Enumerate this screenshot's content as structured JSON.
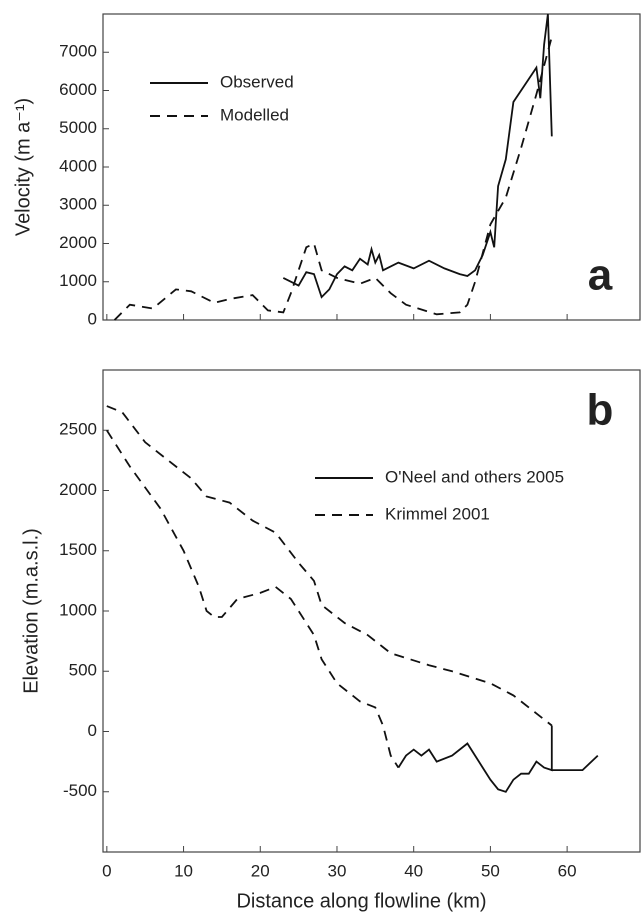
{
  "chart_data": [
    {
      "type": "line",
      "annotation": "a",
      "ylabel": "Velocity (m a⁻¹)",
      "xlim": [
        -0.5,
        69.5
      ],
      "xticks": [
        0,
        10,
        20,
        30,
        40,
        50,
        60
      ],
      "ylim": [
        0,
        8000
      ],
      "yticks": [
        0,
        1000,
        2000,
        3000,
        4000,
        5000,
        6000,
        7000
      ],
      "series": [
        {
          "name": "Observed",
          "color": "#111111",
          "dash": false,
          "x": [
            23,
            25,
            26,
            27,
            28,
            29,
            30,
            31,
            32,
            33,
            34,
            34.5,
            35,
            35.5,
            36,
            37,
            38,
            40,
            42,
            44,
            46,
            47,
            48,
            49,
            50,
            50.5,
            51,
            52,
            53,
            54,
            55,
            56,
            56.5,
            57,
            57.5,
            58
          ],
          "values": [
            1100,
            900,
            1250,
            1200,
            600,
            800,
            1200,
            1400,
            1300,
            1600,
            1450,
            1850,
            1500,
            1700,
            1300,
            1400,
            1500,
            1350,
            1550,
            1350,
            1200,
            1150,
            1300,
            1700,
            2300,
            1900,
            3500,
            4200,
            5700,
            6000,
            6300,
            6600,
            5800,
            7200,
            8000,
            4800
          ]
        },
        {
          "name": "Modelled",
          "color": "#111111",
          "dash": true,
          "x": [
            1,
            3,
            6,
            9,
            11,
            14,
            16,
            19,
            21,
            23,
            24,
            26,
            27,
            28,
            30,
            33,
            35,
            37,
            39,
            43,
            46,
            47,
            48,
            50,
            52,
            54,
            56,
            58
          ],
          "values": [
            0,
            400,
            300,
            800,
            750,
            450,
            550,
            650,
            250,
            200,
            700,
            1900,
            2000,
            1300,
            1100,
            950,
            1100,
            700,
            400,
            150,
            200,
            400,
            1000,
            2500,
            3200,
            4500,
            5900,
            7400
          ]
        }
      ]
    },
    {
      "type": "line",
      "annotation": "b",
      "ylabel": "Elevation (m.a.s.l.)",
      "xlabel": "Distance along flowline (km)",
      "xlim": [
        -0.5,
        69.5
      ],
      "xticks": [
        0,
        10,
        20,
        30,
        40,
        50,
        60
      ],
      "ylim": [
        -1000,
        3000
      ],
      "yticks": [
        -500,
        0,
        500,
        1000,
        1500,
        2000,
        2500
      ],
      "series": [
        {
          "name": "O'Neel and others 2005",
          "color": "#111111",
          "dash": false,
          "x": [
            38,
            39,
            40,
            41,
            42,
            43,
            45,
            47,
            48,
            49,
            50,
            51,
            52,
            53,
            54,
            55,
            56,
            57,
            58,
            58,
            58,
            60,
            62,
            64
          ],
          "values": [
            -300,
            -200,
            -150,
            -200,
            -150,
            -250,
            -200,
            -100,
            -200,
            -300,
            -400,
            -480,
            -500,
            -400,
            -350,
            -350,
            -250,
            -300,
            -320,
            50,
            -320,
            -320,
            -320,
            -200
          ]
        },
        {
          "name": "Krimmel 2001",
          "color": "#111111",
          "dash": true,
          "x": [
            0,
            2,
            5,
            8,
            11,
            13,
            16,
            19,
            22,
            25,
            27,
            28,
            31,
            34,
            37,
            42,
            45,
            50,
            53,
            56,
            58,
            null,
            0,
            3,
            7,
            10,
            12,
            13,
            14,
            15,
            17,
            20,
            22,
            24,
            26,
            27,
            28,
            30,
            33,
            35,
            36,
            37,
            38
          ],
          "values": [
            2700,
            2650,
            2400,
            2250,
            2100,
            1950,
            1900,
            1750,
            1650,
            1400,
            1250,
            1050,
            900,
            800,
            650,
            550,
            500,
            400,
            300,
            150,
            50,
            null,
            2500,
            2200,
            1850,
            1500,
            1200,
            1000,
            950,
            950,
            1100,
            1150,
            1200,
            1100,
            900,
            800,
            600,
            400,
            250,
            200,
            50,
            -200,
            -300
          ]
        }
      ]
    }
  ]
}
